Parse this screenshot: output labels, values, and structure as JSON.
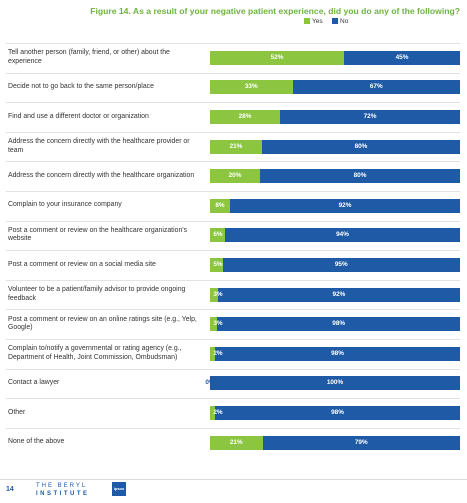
{
  "title": "Figure 14. As a result of your negative patient experience, did you do any of the following?",
  "colors": {
    "yes": "#8cc641",
    "no": "#1e5aa6",
    "title": "#6fb33f"
  },
  "chart_data": {
    "type": "bar",
    "orientation": "horizontal",
    "stacked": true,
    "title": "Figure 14. As a result of your negative patient experience, did you do any of the following?",
    "xlim": [
      0,
      100
    ],
    "legend_position": "top-right",
    "categories": [
      "Tell another person (family, friend, or other) about the experience",
      "Decide not to go back to the same person/place",
      "Find and use a different doctor or organization",
      "Address the concern directly with the healthcare provider or team",
      "Address the concern directly with the healthcare organization",
      "Complain to your insurance company",
      "Post a comment or review on the healthcare organization's website",
      "Post a comment or review on a social media site",
      "Volunteer to be a patient/family advisor to provide ongoing feedback",
      "Post a comment or review on an online ratings site (e.g., Yelp, Google)",
      "Complain to/notify a governmental or rating agency (e.g., Department of Health, Joint Commission, Ombudsman)",
      "Contact a lawyer",
      "Other",
      "None of the above"
    ],
    "series": [
      {
        "name": "Yes",
        "values": [
          52,
          33,
          28,
          21,
          20,
          8,
          6,
          5,
          3,
          3,
          2,
          0,
          2,
          21
        ]
      },
      {
        "name": "No",
        "values": [
          45,
          67,
          72,
          80,
          80,
          92,
          94,
          95,
          92,
          98,
          98,
          100,
          98,
          79
        ]
      }
    ]
  },
  "footer": {
    "page_number": "14",
    "logo_line1": "THE BERYL",
    "logo_line2": "INSTITUTE",
    "partner_logo": "Ipsos"
  }
}
